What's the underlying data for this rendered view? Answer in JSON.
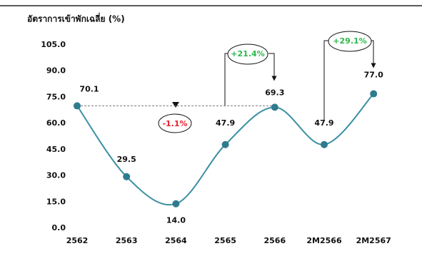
{
  "chart_data": {
    "type": "line",
    "title": "อัตราการเข้าพักเฉลี่ย (%)",
    "categories": [
      "2562",
      "2563",
      "2564",
      "2565",
      "2566",
      "2M2566",
      "2M2567"
    ],
    "values": [
      70.1,
      29.5,
      14.0,
      47.9,
      69.3,
      47.9,
      77.0
    ],
    "value_labels": [
      "70.1",
      "29.5",
      "14.0",
      "47.9",
      "69.3",
      "47.9",
      "77.0"
    ],
    "color": "#3a8fa3",
    "marker_color": "#2f7b8e",
    "ylim": [
      0,
      105
    ],
    "yticks": [
      {
        "value": 0,
        "label": "0.0"
      },
      {
        "value": 15,
        "label": "15.0"
      },
      {
        "value": 30,
        "label": "30.0"
      },
      {
        "value": 45,
        "label": "45.0"
      },
      {
        "value": 60,
        "label": "60.0"
      },
      {
        "value": 75,
        "label": "75.0"
      },
      {
        "value": 90,
        "label": "90.0"
      },
      {
        "value": 105,
        "label": "105.0"
      }
    ],
    "annotations": [
      {
        "text": "-1.1%",
        "color": "#e8212b"
      },
      {
        "text": "+21.4%",
        "color": "#2db84d"
      },
      {
        "text": "+29.1%",
        "color": "#2db84d"
      }
    ]
  }
}
